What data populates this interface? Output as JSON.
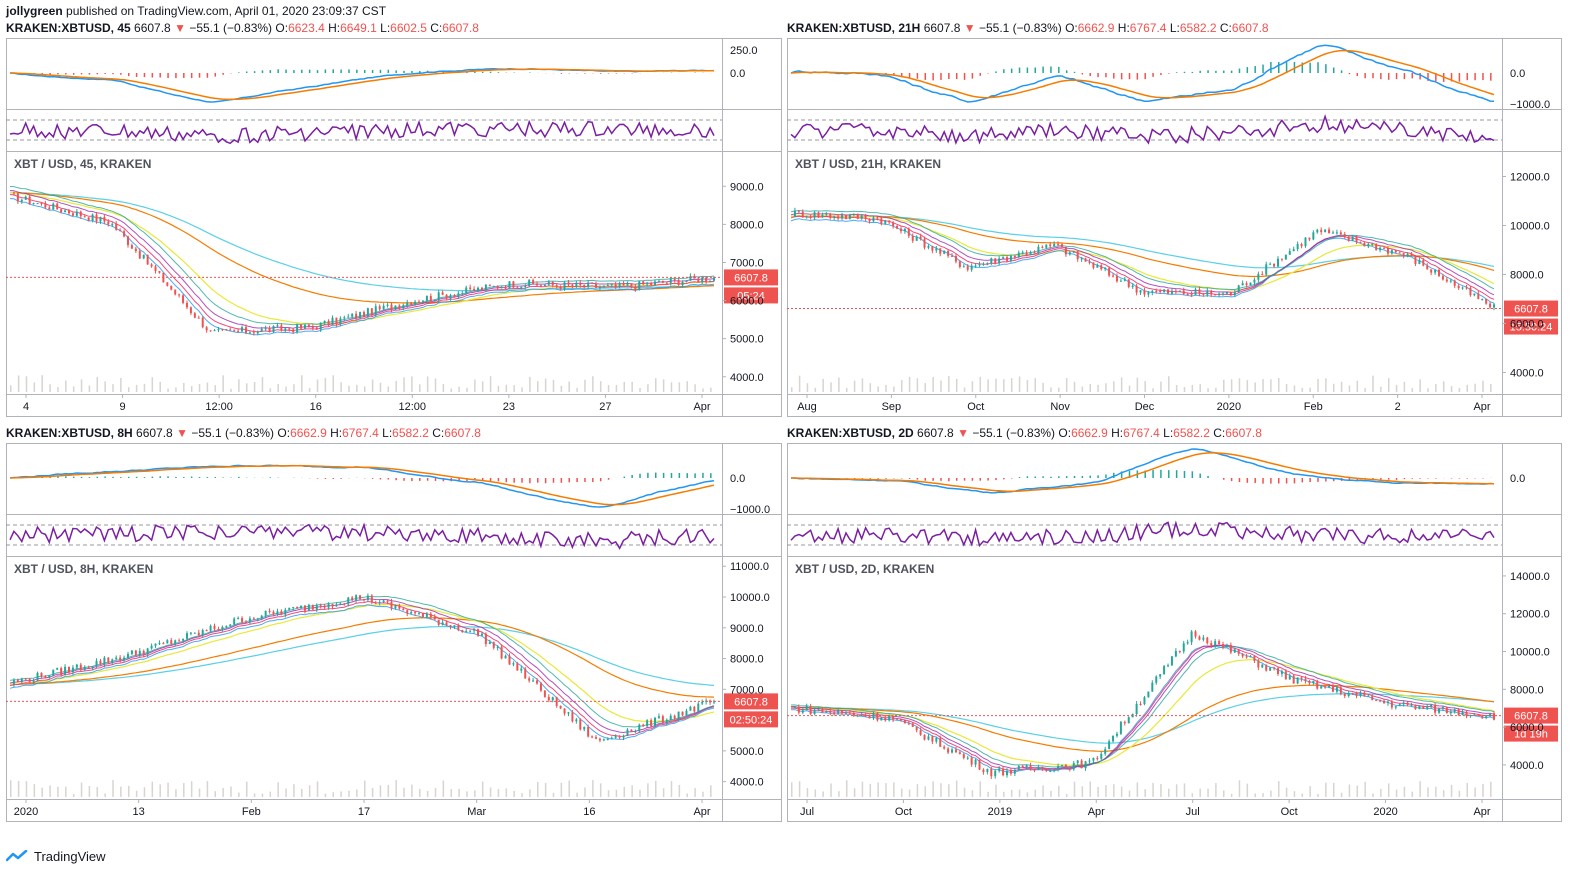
{
  "header": {
    "author": "jollygreen",
    "published": "published on TradingView.com, April 01, 2020 23:09:37 CST"
  },
  "colors": {
    "macd": "#2196f3",
    "signal": "#f57c00",
    "rsi": "#7b1fa2",
    "down": "#ef5350",
    "up": "#26a69a",
    "ema_slow": "#5ad0e6",
    "sma_yellow": "#e8e83a"
  },
  "panels": [
    {
      "id": "p1",
      "symbol": "KRAKEN:XBTUSD, 45",
      "price": "6607.8",
      "change": "−55.1 (−0.83%)",
      "o": "6623.4",
      "h": "6649.1",
      "l": "6602.5",
      "c": "6607.8",
      "main_title": "XBT / USD, 45, KRAKEN",
      "price_label": "6607.8",
      "countdown": "05:24",
      "macd_ticks": [
        "250.0",
        "0.0"
      ],
      "price_ticks": [
        "9000.0",
        "8000.0",
        "7000.0",
        "6000.0",
        "5000.0",
        "4000.0"
      ],
      "x_ticks": [
        "4",
        "9",
        "12:00",
        "16",
        "12:00",
        "23",
        "27",
        "Apr"
      ],
      "chart_data": {
        "type": "line",
        "title": "XBT / USD, 45, KRAKEN",
        "ylim": [
          3600,
          9900
        ],
        "x": [
          "4",
          "9",
          "12:00",
          "16",
          "12:00",
          "23",
          "27",
          "Apr"
        ],
        "series": [
          {
            "name": "XBT / USD",
            "values": [
              8750,
              8050,
              5150,
              5300,
              6000,
              6450,
              6350,
              6607.8
            ]
          }
        ]
      }
    },
    {
      "id": "p2",
      "symbol": "KRAKEN:XBTUSD, 21H",
      "price": "6607.8",
      "change": "−55.1 (−0.83%)",
      "o": "6662.9",
      "h": "6767.4",
      "l": "6582.2",
      "c": "6607.8",
      "main_title": "XBT / USD, 21H, KRAKEN",
      "price_label": "6607.8",
      "countdown": "15:50:24",
      "macd_ticks": [
        "0.0",
        "−1000.0"
      ],
      "price_ticks": [
        "12000.0",
        "10000.0",
        "8000.0",
        "6000.0",
        "4000.0"
      ],
      "x_ticks": [
        "Aug",
        "Sep",
        "Oct",
        "Nov",
        "Dec",
        "2020",
        "Feb",
        "2",
        "Apr"
      ],
      "chart_data": {
        "type": "line",
        "title": "XBT / USD, 21H, KRAKEN",
        "ylim": [
          3200,
          13000
        ],
        "x": [
          "Aug",
          "Sep",
          "Oct",
          "Nov",
          "Dec",
          "2020",
          "Feb",
          "2",
          "Apr"
        ],
        "series": [
          {
            "name": "XBT / USD",
            "values": [
              10500,
              10300,
              8300,
              9200,
              7300,
              7200,
              9800,
              8800,
              6607.8
            ]
          }
        ]
      }
    },
    {
      "id": "p3",
      "symbol": "KRAKEN:XBTUSD, 8H",
      "price": "6607.8",
      "change": "−55.1 (−0.83%)",
      "o": "6662.9",
      "h": "6767.4",
      "l": "6582.2",
      "c": "6607.8",
      "main_title": "XBT / USD, 8H, KRAKEN",
      "price_label": "6607.8",
      "countdown": "02:50:24",
      "macd_ticks": [
        "0.0",
        "−1000.0"
      ],
      "price_ticks": [
        "11000.0",
        "10000.0",
        "9000.0",
        "8000.0",
        "7000.0",
        "5000.0",
        "4000.0"
      ],
      "x_ticks": [
        "2020",
        "13",
        "Feb",
        "17",
        "Mar",
        "16",
        "Apr"
      ],
      "chart_data": {
        "type": "line",
        "title": "XBT / USD, 8H, KRAKEN",
        "ylim": [
          3500,
          11300
        ],
        "x": [
          "2020",
          "13",
          "Feb",
          "17",
          "Mar",
          "16",
          "Apr"
        ],
        "series": [
          {
            "name": "XBT / USD",
            "values": [
              7200,
              8100,
              9300,
              10000,
              8800,
              5300,
              6607.8
            ]
          }
        ]
      }
    },
    {
      "id": "p4",
      "symbol": "KRAKEN:XBTUSD, 2D",
      "price": "6607.8",
      "change": "−55.1 (−0.83%)",
      "o": "6662.9",
      "h": "6767.4",
      "l": "6582.2",
      "c": "6607.8",
      "main_title": "XBT / USD, 2D, KRAKEN",
      "price_label": "6607.8",
      "countdown": "1d 19h",
      "macd_ticks": [
        "0.0"
      ],
      "price_ticks": [
        "14000.0",
        "12000.0",
        "10000.0",
        "8000.0",
        "6000.0",
        "4000.0"
      ],
      "x_ticks": [
        "Jul",
        "Oct",
        "2019",
        "Apr",
        "Jul",
        "Oct",
        "2020",
        "Apr"
      ],
      "chart_data": {
        "type": "line",
        "title": "XBT / USD, 2D, KRAKEN",
        "ylim": [
          2300,
          15000
        ],
        "x": [
          "Jul",
          "Oct",
          "2019",
          "Apr",
          "Jul",
          "Oct",
          "2020",
          "Apr"
        ],
        "series": [
          {
            "name": "XBT / USD",
            "values": [
              7000,
              6500,
              3600,
              4100,
              11000,
              8500,
              7200,
              6607.8
            ]
          }
        ]
      }
    }
  ],
  "footer": {
    "brand": "TradingView"
  }
}
